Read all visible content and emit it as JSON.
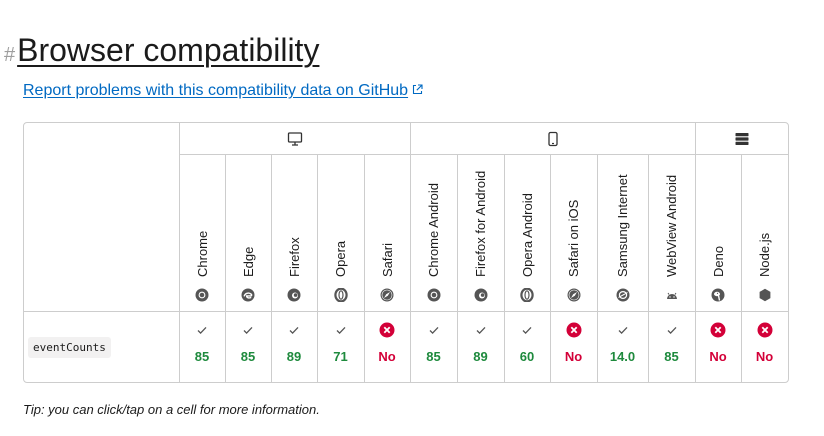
{
  "heading": {
    "hash": "#",
    "title": "Browser compatibility"
  },
  "report_link": "Report problems with this compatibility data on GitHub",
  "platforms": [
    {
      "name": "desktop",
      "icon": "desktop-icon"
    },
    {
      "name": "mobile",
      "icon": "mobile-icon"
    },
    {
      "name": "server",
      "icon": "server-icon"
    }
  ],
  "browsers": [
    {
      "name": "Chrome",
      "icon": "chrome-icon",
      "support": true,
      "version": "85"
    },
    {
      "name": "Edge",
      "icon": "edge-icon",
      "support": true,
      "version": "85"
    },
    {
      "name": "Firefox",
      "icon": "firefox-icon",
      "support": true,
      "version": "89"
    },
    {
      "name": "Opera",
      "icon": "opera-icon",
      "support": true,
      "version": "71"
    },
    {
      "name": "Safari",
      "icon": "safari-icon",
      "support": false,
      "version": "No"
    },
    {
      "name": "Chrome Android",
      "icon": "chrome-icon",
      "support": true,
      "version": "85"
    },
    {
      "name": "Firefox for Android",
      "icon": "firefox-icon",
      "support": true,
      "version": "89"
    },
    {
      "name": "Opera Android",
      "icon": "opera-icon",
      "support": true,
      "version": "60"
    },
    {
      "name": "Safari on iOS",
      "icon": "safari-icon",
      "support": false,
      "version": "No"
    },
    {
      "name": "Samsung Internet",
      "icon": "samsung-internet-icon",
      "support": true,
      "version": "14.0"
    },
    {
      "name": "WebView Android",
      "icon": "android-icon",
      "support": true,
      "version": "85"
    },
    {
      "name": "Deno",
      "icon": "deno-icon",
      "support": false,
      "version": "No"
    },
    {
      "name": "Node.js",
      "icon": "nodejs-icon",
      "support": false,
      "version": "No"
    }
  ],
  "feature": "eventCounts",
  "tip": "Tip: you can click/tap on a cell for more information.",
  "colors": {
    "yes": "#1e8a3d",
    "no": "#d30038",
    "link": "#0069c2",
    "border": "#cdcdcd"
  }
}
